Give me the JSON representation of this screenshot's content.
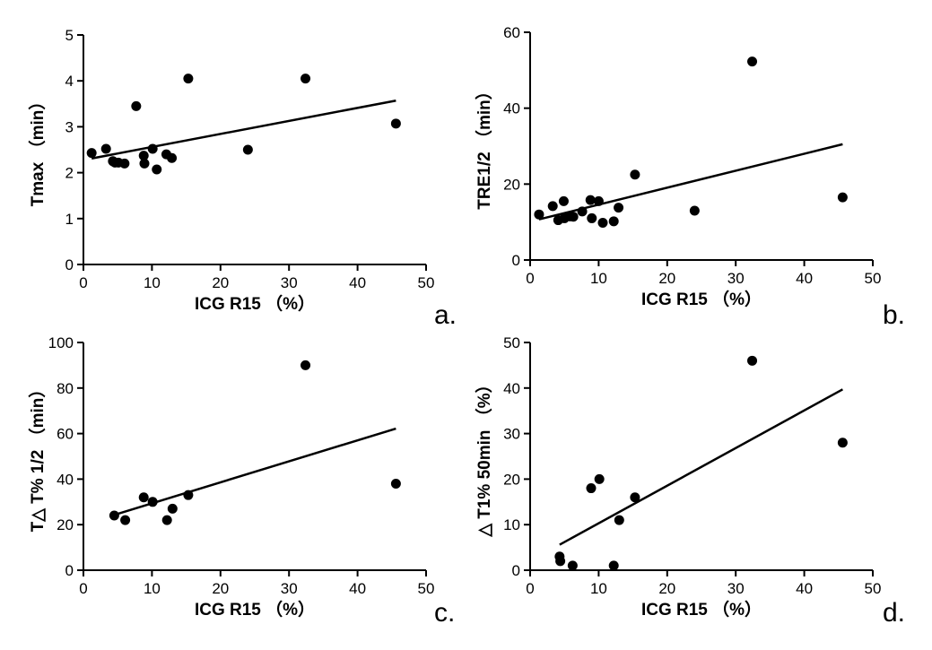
{
  "chart_data": [
    {
      "type": "scatter",
      "panel_label": "a.",
      "xlabel": "ICG R15 （%）",
      "ylabel": "Tmax （min）",
      "xlim": [
        0,
        50
      ],
      "ylim": [
        0,
        5
      ],
      "xticks": [
        0,
        10,
        20,
        30,
        40,
        50
      ],
      "yticks": [
        0,
        1,
        2,
        3,
        4,
        5
      ],
      "points": [
        [
          1.2,
          2.43
        ],
        [
          3.3,
          2.52
        ],
        [
          4.3,
          2.25
        ],
        [
          4.6,
          2.22
        ],
        [
          5.1,
          2.22
        ],
        [
          6.0,
          2.2
        ],
        [
          7.7,
          3.45
        ],
        [
          8.8,
          2.37
        ],
        [
          8.9,
          2.2
        ],
        [
          10.1,
          2.52
        ],
        [
          10.7,
          2.07
        ],
        [
          12.1,
          2.4
        ],
        [
          12.9,
          2.32
        ],
        [
          15.3,
          4.05
        ],
        [
          24.0,
          2.5
        ],
        [
          32.4,
          4.05
        ],
        [
          45.6,
          3.07
        ]
      ],
      "fit_line": [
        [
          1.2,
          2.31
        ],
        [
          45.6,
          3.57
        ]
      ]
    },
    {
      "type": "scatter",
      "panel_label": "b.",
      "xlabel": "ICG R15 （%）",
      "ylabel": "TRE1/2 （min）",
      "xlim": [
        0,
        50
      ],
      "ylim": [
        0,
        60
      ],
      "xticks": [
        0,
        10,
        20,
        30,
        40,
        50
      ],
      "yticks": [
        0,
        20,
        40,
        60
      ],
      "points": [
        [
          1.3,
          12.0
        ],
        [
          3.3,
          14.2
        ],
        [
          4.1,
          10.5
        ],
        [
          4.9,
          15.5
        ],
        [
          5.0,
          11.0
        ],
        [
          5.8,
          11.5
        ],
        [
          6.3,
          11.4
        ],
        [
          7.6,
          12.8
        ],
        [
          8.8,
          15.8
        ],
        [
          9.0,
          11.0
        ],
        [
          10.0,
          15.5
        ],
        [
          10.6,
          9.8
        ],
        [
          12.2,
          10.2
        ],
        [
          12.9,
          13.8
        ],
        [
          15.3,
          22.5
        ],
        [
          24.0,
          13.0
        ],
        [
          32.4,
          52.3
        ],
        [
          45.6,
          16.5
        ]
      ],
      "fit_line": [
        [
          1.3,
          10.7
        ],
        [
          45.6,
          30.5
        ]
      ]
    },
    {
      "type": "scatter",
      "panel_label": "c.",
      "xlabel": "ICG R15 （%）",
      "ylabel": "T△ T% 1/2 （min）",
      "xlim": [
        0,
        50
      ],
      "ylim": [
        0,
        100
      ],
      "xticks": [
        0,
        10,
        20,
        30,
        40,
        50
      ],
      "yticks": [
        0,
        20,
        40,
        60,
        80,
        100
      ],
      "points": [
        [
          4.5,
          24.0
        ],
        [
          6.1,
          22.0
        ],
        [
          8.8,
          32.0
        ],
        [
          10.1,
          30.0
        ],
        [
          12.2,
          22.0
        ],
        [
          13.0,
          27.0
        ],
        [
          15.3,
          33.0
        ],
        [
          32.4,
          90.0
        ],
        [
          45.6,
          38.0
        ]
      ],
      "fit_line": [
        [
          4.5,
          24.3
        ],
        [
          45.6,
          62.2
        ]
      ]
    },
    {
      "type": "scatter",
      "panel_label": "d.",
      "xlabel": "ICG R15 （%）",
      "ylabel": "△ T1% 50min （%）",
      "xlim": [
        0,
        50
      ],
      "ylim": [
        0,
        50
      ],
      "xticks": [
        0,
        10,
        20,
        30,
        40,
        50
      ],
      "yticks": [
        0,
        10,
        20,
        30,
        40,
        50
      ],
      "points": [
        [
          4.3,
          3.0
        ],
        [
          4.4,
          2.0
        ],
        [
          6.2,
          1.0
        ],
        [
          8.9,
          18.0
        ],
        [
          10.1,
          20.0
        ],
        [
          12.2,
          1.0
        ],
        [
          13.0,
          11.0
        ],
        [
          15.3,
          16.0
        ],
        [
          32.4,
          46.0
        ],
        [
          45.6,
          28.0
        ]
      ],
      "fit_line": [
        [
          4.3,
          5.6
        ],
        [
          45.6,
          39.7
        ]
      ]
    }
  ]
}
